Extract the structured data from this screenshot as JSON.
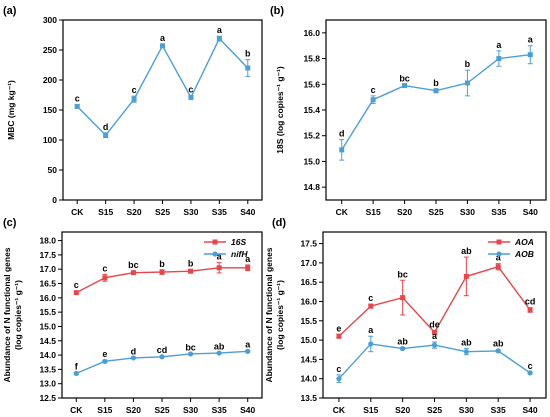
{
  "colors": {
    "blue": "#4c9fd6",
    "red": "#e8464a",
    "axis": "#000000"
  },
  "chart_data": [
    {
      "panel": "(a)",
      "type": "line",
      "categories": [
        "CK",
        "S15",
        "S20",
        "S25",
        "S30",
        "S35",
        "S40"
      ],
      "ylabel": "MBC (mg kg⁻¹)",
      "ylim": [
        0,
        300
      ],
      "yticks": [
        0,
        50,
        100,
        150,
        200,
        250,
        300
      ],
      "yticklabels": [
        "0",
        "50",
        "100",
        "150",
        "200",
        "250",
        "300"
      ],
      "series": [
        {
          "color": "#4c9fd6",
          "marker": "square",
          "values": [
            156,
            108,
            168,
            257,
            171,
            269,
            220
          ],
          "errors": [
            3,
            4,
            5,
            3,
            3,
            4,
            14
          ],
          "sig": [
            "c",
            "d",
            "c",
            "a",
            "c",
            "a",
            "b"
          ]
        }
      ]
    },
    {
      "panel": "(b)",
      "type": "line",
      "categories": [
        "CK",
        "S15",
        "S20",
        "S25",
        "S30",
        "S35",
        "S40"
      ],
      "ylabel": "18S (log copies⁻¹ g⁻¹)",
      "ylim": [
        14.7,
        16.1
      ],
      "yticks": [
        14.8,
        15.0,
        15.2,
        15.4,
        15.6,
        15.8,
        16.0
      ],
      "yticklabels": [
        "14.8",
        "15.0",
        "15.2",
        "15.4",
        "15.6",
        "15.8",
        "16.0"
      ],
      "series": [
        {
          "color": "#4c9fd6",
          "marker": "square",
          "values": [
            15.09,
            15.48,
            15.59,
            15.55,
            15.61,
            15.8,
            15.83
          ],
          "errors": [
            0.08,
            0.03,
            0.01,
            0.015,
            0.1,
            0.06,
            0.07
          ],
          "sig": [
            "d",
            "c",
            "bc",
            "b",
            "b",
            "a",
            "a"
          ]
        }
      ]
    },
    {
      "panel": "(c)",
      "type": "line",
      "categories": [
        "CK",
        "S15",
        "S20",
        "S25",
        "S30",
        "S35",
        "S40"
      ],
      "ylabel": "Abundance of N functional genes",
      "ylabel2": "(log copies⁻¹ g⁻¹)",
      "ylim": [
        12.5,
        18.3
      ],
      "yticks": [
        12.5,
        13.0,
        13.5,
        14.0,
        14.5,
        15.0,
        15.5,
        16.0,
        16.5,
        17.0,
        17.5,
        18.0
      ],
      "yticklabels": [
        "12.5",
        "13.0",
        "13.5",
        "14.0",
        "14.5",
        "15.0",
        "15.5",
        "16.0",
        "16.5",
        "17.0",
        "17.5",
        "18.0"
      ],
      "legend": "top-right",
      "series": [
        {
          "name": "16S",
          "color": "#e8464a",
          "marker": "square",
          "values": [
            16.18,
            16.7,
            16.88,
            16.9,
            16.93,
            17.05,
            17.05
          ],
          "errors": [
            0.05,
            0.12,
            0.05,
            0.08,
            0.06,
            0.18,
            0.1
          ],
          "sig": [
            "c",
            "c",
            "bc",
            "b",
            "b",
            "a",
            "a"
          ]
        },
        {
          "name": "nifH",
          "color": "#4c9fd6",
          "marker": "circle",
          "values": [
            13.36,
            13.78,
            13.9,
            13.94,
            14.04,
            14.07,
            14.13
          ],
          "errors": [
            0.03,
            0.04,
            0.02,
            0.02,
            0.02,
            0.02,
            0.03
          ],
          "sig": [
            "f",
            "e",
            "d",
            "cd",
            "bc",
            "ab",
            "a"
          ]
        }
      ]
    },
    {
      "panel": "(d)",
      "type": "line",
      "categories": [
        "CK",
        "S15",
        "S20",
        "S25",
        "S30",
        "S35",
        "S40"
      ],
      "ylabel": "Abundance of N functional genes",
      "ylabel2": "(log copies⁻¹ g⁻¹)",
      "ylim": [
        13.5,
        17.8
      ],
      "yticks": [
        13.5,
        14.0,
        14.5,
        15.0,
        15.5,
        16.0,
        16.5,
        17.0,
        17.5
      ],
      "yticklabels": [
        "13.5",
        "14.0",
        "14.5",
        "15.0",
        "15.5",
        "16.0",
        "16.5",
        "17.0",
        "17.5"
      ],
      "legend": "top-right",
      "series": [
        {
          "name": "AOA",
          "color": "#e8464a",
          "marker": "square",
          "values": [
            15.1,
            15.88,
            16.1,
            15.2,
            16.65,
            16.9,
            15.78
          ],
          "errors": [
            0.05,
            0.05,
            0.45,
            0.05,
            0.5,
            0.08,
            0.06
          ],
          "sig": [
            "e",
            "c",
            "bc",
            "de",
            "ab",
            "a",
            "cd"
          ]
        },
        {
          "name": "AOB",
          "color": "#4c9fd6",
          "marker": "circle",
          "values": [
            14.0,
            14.9,
            14.78,
            14.87,
            14.7,
            14.72,
            14.15
          ],
          "errors": [
            0.1,
            0.2,
            0.03,
            0.08,
            0.08,
            0.03,
            0.02
          ],
          "sig": [
            "c",
            "a",
            "ab",
            "a",
            "ab",
            "ab",
            "c"
          ]
        }
      ]
    }
  ]
}
